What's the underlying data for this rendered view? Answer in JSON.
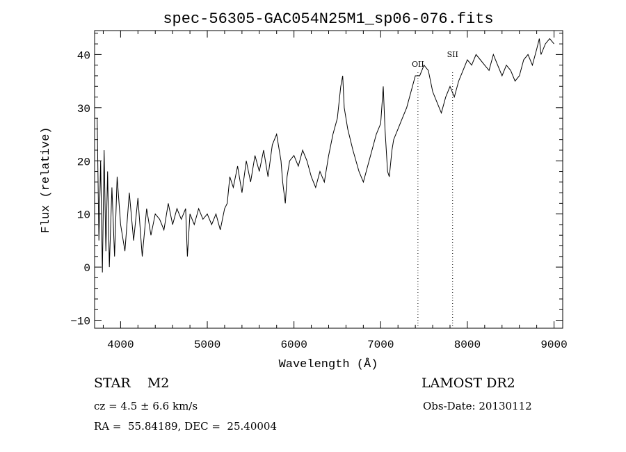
{
  "chart_data": {
    "type": "line",
    "title": "spec-56305-GAC054N25M1_sp06-076.fits",
    "xlabel": "Wavelength (Å)",
    "ylabel": "Flux (relative)",
    "xlim": [
      3700,
      9100
    ],
    "ylim": [
      -11.5,
      44.5
    ],
    "xticks": [
      4000,
      5000,
      6000,
      7000,
      8000,
      9000
    ],
    "yticks": [
      -10,
      0,
      10,
      20,
      30,
      40
    ],
    "grid": false,
    "line_markers": [
      {
        "label": "OII",
        "x": 7430
      },
      {
        "label": "SII",
        "x": 7830
      }
    ],
    "series": [
      {
        "x": [
          3730,
          3750,
          3770,
          3790,
          3810,
          3830,
          3850,
          3870,
          3900,
          3930,
          3960,
          4000,
          4050,
          4100,
          4150,
          4200,
          4250,
          4300,
          4350,
          4400,
          4450,
          4500,
          4550,
          4600,
          4650,
          4700,
          4750,
          4770,
          4800,
          4850,
          4900,
          4950,
          5000,
          5050,
          5100,
          5150,
          5200,
          5230,
          5260,
          5300,
          5350,
          5400,
          5450,
          5500,
          5550,
          5600,
          5650,
          5700,
          5750,
          5800,
          5850,
          5870,
          5900,
          5920,
          5950,
          6000,
          6050,
          6100,
          6150,
          6200,
          6250,
          6300,
          6350,
          6400,
          6450,
          6500,
          6540,
          6562,
          6580,
          6620,
          6680,
          6750,
          6800,
          6850,
          6900,
          6950,
          7000,
          7030,
          7050,
          7080,
          7100,
          7130,
          7150,
          7200,
          7250,
          7300,
          7350,
          7400,
          7450,
          7500,
          7550,
          7600,
          7650,
          7700,
          7750,
          7800,
          7850,
          7900,
          7950,
          8000,
          8050,
          8100,
          8150,
          8200,
          8250,
          8300,
          8350,
          8400,
          8450,
          8500,
          8550,
          8600,
          8650,
          8700,
          8750,
          8800,
          8830,
          8850,
          8900,
          8950,
          9000
        ],
        "y": [
          28,
          5,
          20,
          -1,
          22,
          3,
          18,
          0,
          15,
          2,
          17,
          8,
          3,
          14,
          5,
          13,
          2,
          11,
          6,
          10,
          9,
          7,
          12,
          8,
          11,
          9,
          11,
          2,
          10,
          8,
          11,
          9,
          10,
          8,
          10,
          7,
          11,
          12,
          17,
          15,
          19,
          14,
          20,
          16,
          21,
          18,
          22,
          17,
          23,
          25,
          20,
          16,
          12,
          17,
          20,
          21,
          19,
          22,
          20,
          17,
          15,
          18,
          16,
          21,
          25,
          28,
          34,
          36,
          30,
          26,
          22,
          18,
          16,
          19,
          22,
          25,
          27,
          34,
          26,
          18,
          17,
          22,
          24,
          26,
          28,
          30,
          33,
          36,
          36,
          38,
          37,
          33,
          31,
          29,
          32,
          34,
          32,
          35,
          37,
          39,
          38,
          40,
          39,
          38,
          37,
          40,
          38,
          36,
          38,
          37,
          35,
          36,
          39,
          40,
          38,
          41,
          43,
          40,
          42,
          43,
          42
        ]
      }
    ]
  },
  "info": {
    "class_line": "STAR    M2",
    "survey": "LAMOST DR2",
    "cz": "cz = 4.5 ± 6.6 km/s",
    "obs_date": "Obs-Date: 20130112",
    "coords": "RA =  55.84189, DEC =  25.40004"
  }
}
